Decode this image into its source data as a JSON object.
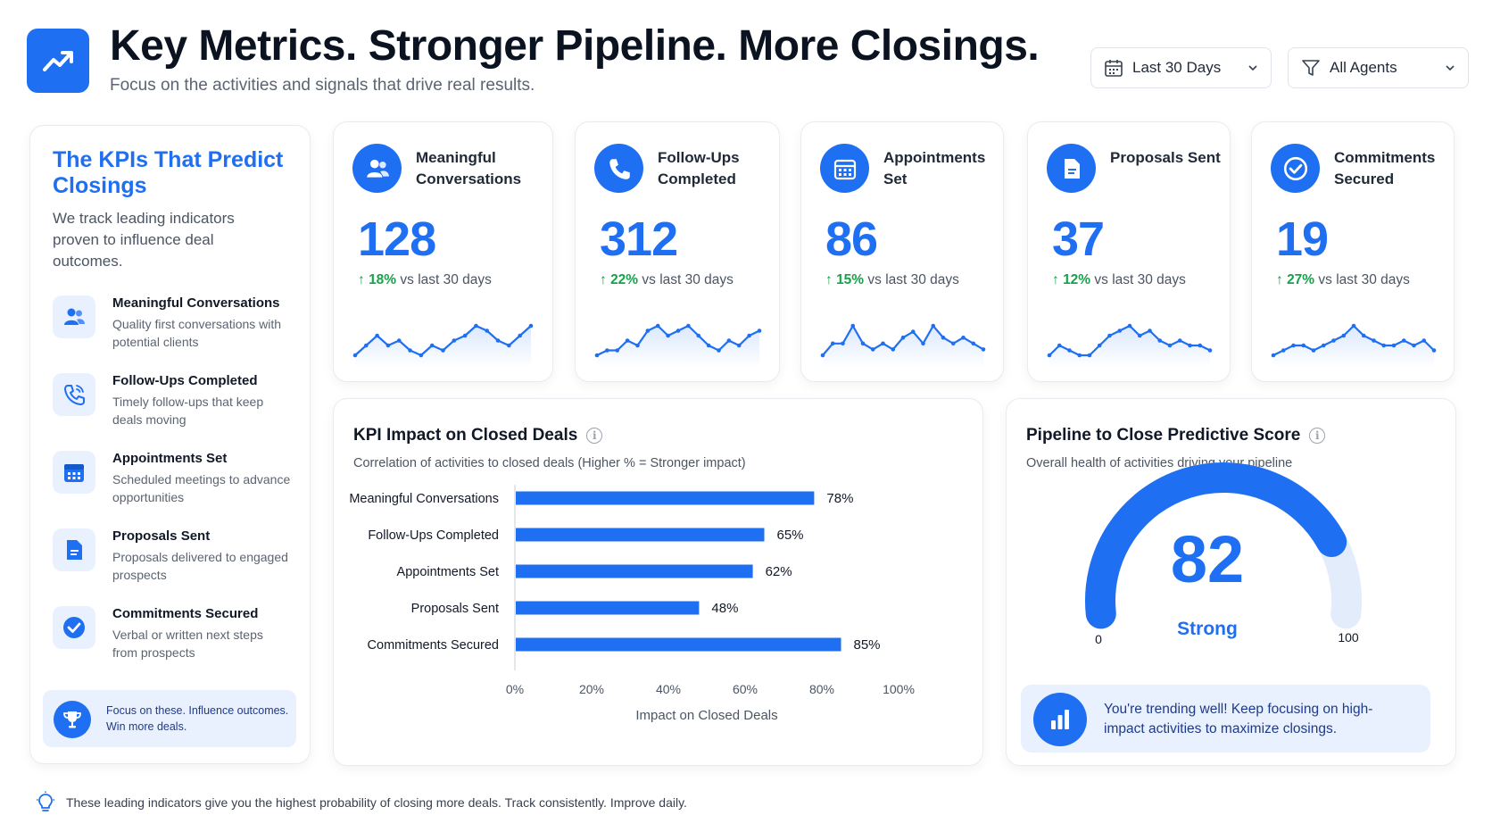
{
  "header": {
    "logo_icon": "trending-up-icon",
    "title": "Key Metrics. Stronger Pipeline. More Closings.",
    "subtitle": "Focus on the activities and signals that drive real results."
  },
  "filters": {
    "date_range": {
      "icon": "calendar-icon",
      "value": "Last 30 Days"
    },
    "agents": {
      "icon": "filter-icon",
      "value": "All Agents"
    }
  },
  "sidebar": {
    "title": "The KPIs That Predict Closings",
    "description": "We track leading indicators proven to influence deal outcomes.",
    "items": [
      {
        "icon": "people-icon",
        "name": "Meaningful Conversations",
        "description": "Quality first conversations with potential clients"
      },
      {
        "icon": "phone-icon",
        "name": "Follow-Ups Completed",
        "description": "Timely follow-ups that keep deals moving"
      },
      {
        "icon": "calendar-icon",
        "name": "Appointments Set",
        "description": "Scheduled meetings to advance opportunities"
      },
      {
        "icon": "document-icon",
        "name": "Proposals Sent",
        "description": "Proposals delivered to engaged prospects"
      },
      {
        "icon": "check-circle-icon",
        "name": "Commitments Secured",
        "description": "Verbal or written next steps from prospects"
      }
    ],
    "footer": {
      "icon": "trophy-icon",
      "text": "Focus on these. Influence outcomes. Win more deals."
    }
  },
  "kpis": [
    {
      "icon": "people-icon",
      "name": "Meaningful Conversations",
      "value": "128",
      "change": "18%",
      "comparison": "vs last 30 days",
      "spark": [
        3,
        5,
        7,
        5,
        6,
        4,
        3,
        5,
        4,
        6,
        7,
        9,
        8,
        6,
        5,
        7,
        9
      ]
    },
    {
      "icon": "phone-icon",
      "name": "Follow-Ups Completed",
      "value": "312",
      "change": "22%",
      "comparison": "vs last 30 days",
      "spark": [
        2,
        3,
        3,
        5,
        4,
        7,
        8,
        6,
        7,
        8,
        6,
        4,
        3,
        5,
        4,
        6,
        7
      ]
    },
    {
      "icon": "calendar-icon",
      "name": "Appointments Set",
      "value": "86",
      "change": "15%",
      "comparison": "vs last 30 days",
      "spark": [
        3,
        5,
        5,
        8,
        5,
        4,
        5,
        4,
        6,
        7,
        5,
        8,
        6,
        5,
        6,
        5,
        4
      ]
    },
    {
      "icon": "document-icon",
      "name": "Proposals Sent",
      "value": "37",
      "change": "12%",
      "comparison": "vs last 30 days",
      "spark": [
        3,
        5,
        4,
        3,
        3,
        5,
        7,
        8,
        9,
        7,
        8,
        6,
        5,
        6,
        5,
        5,
        4
      ]
    },
    {
      "icon": "check-circle-icon",
      "name": "Commitments Secured",
      "value": "19",
      "change": "27%",
      "comparison": "vs last 30 days",
      "spark": [
        3,
        4,
        5,
        5,
        4,
        5,
        6,
        7,
        9,
        7,
        6,
        5,
        5,
        6,
        5,
        6,
        4
      ]
    }
  ],
  "impact": {
    "title": "KPI Impact on Closed Deals",
    "info_icon": "info-icon",
    "subtitle": "Correlation of activities to closed deals (Higher % = Stronger impact)"
  },
  "chart_data": {
    "type": "bar",
    "orientation": "horizontal",
    "categories": [
      "Meaningful Conversations",
      "Follow-Ups Completed",
      "Appointments Set",
      "Proposals Sent",
      "Commitments Secured"
    ],
    "values": [
      78,
      65,
      62,
      48,
      85
    ],
    "value_labels": [
      "78%",
      "65%",
      "62%",
      "48%",
      "85%"
    ],
    "xlabel": "Impact on Closed Deals",
    "xlim": [
      0,
      100
    ],
    "xticks": [
      "0%",
      "20%",
      "40%",
      "60%",
      "80%",
      "100%"
    ],
    "grid": false,
    "color": "#1f6ff2"
  },
  "gauge": {
    "title": "Pipeline to Close Predictive Score",
    "info_icon": "info-icon",
    "subtitle": "Overall health of activities driving your pipeline",
    "score": 82,
    "score_label": "82",
    "rating": "Strong",
    "min_label": "0",
    "max_label": "100",
    "min": 0,
    "max": 100,
    "message_icon": "bar-chart-icon",
    "message": "You're trending well! Keep focusing on high-impact activities to maximize closings."
  },
  "footer": {
    "icon": "lightbulb-icon",
    "text": "These leading indicators give you the highest probability of closing more deals. Track consistently. Improve daily."
  },
  "colors": {
    "accent": "#1f6ff2",
    "positive": "#16a34a",
    "track": "#e3ecfb"
  }
}
